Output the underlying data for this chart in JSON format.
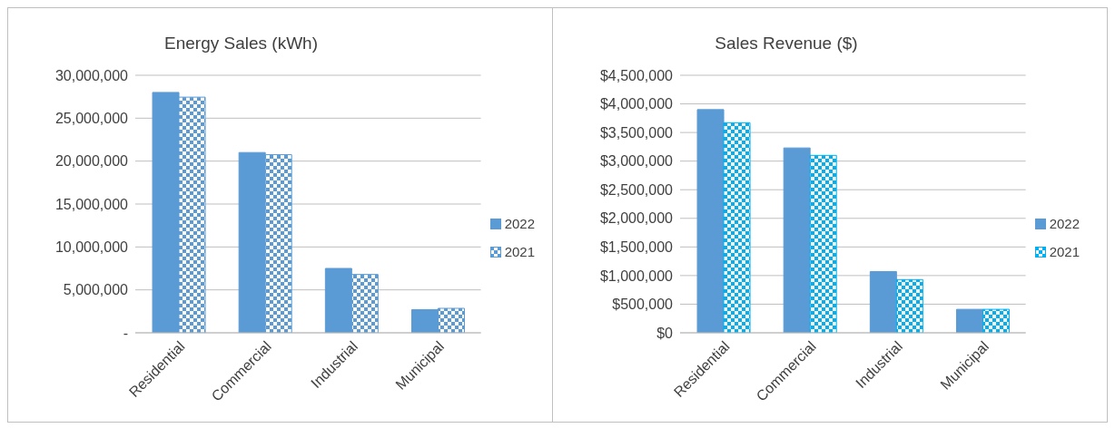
{
  "chart_data": [
    {
      "type": "bar",
      "title": "Energy Sales (kWh)",
      "categories": [
        "Residential",
        "Commercial",
        "Industrial",
        "Municipal"
      ],
      "series": [
        {
          "name": "2022",
          "color": "#5b9bd5",
          "values": [
            28000000,
            21000000,
            7500000,
            2700000
          ]
        },
        {
          "name": "2021",
          "color": "#5b9bd5",
          "values": [
            27450000,
            20750000,
            6800000,
            2850000
          ]
        }
      ],
      "ylim": [
        0,
        30000000
      ],
      "yticks": [
        {
          "value": 0,
          "label": "-"
        },
        {
          "value": 5000000,
          "label": "5,000,000"
        },
        {
          "value": 10000000,
          "label": "10,000,000"
        },
        {
          "value": 15000000,
          "label": "15,000,000"
        },
        {
          "value": 20000000,
          "label": "20,000,000"
        },
        {
          "value": 25000000,
          "label": "25,000,000"
        },
        {
          "value": 30000000,
          "label": "30,000,000"
        }
      ],
      "grid": "y",
      "legend": "right"
    },
    {
      "type": "bar",
      "title": "Sales Revenue ($)",
      "categories": [
        "Residential",
        "Commercial",
        "Industrial",
        "Municipal"
      ],
      "series": [
        {
          "name": "2022",
          "color": "#5b9bd5",
          "values": [
            3900000,
            3230000,
            1070000,
            410000
          ]
        },
        {
          "name": "2021",
          "color": "#00b0f0",
          "values": [
            3670000,
            3100000,
            930000,
            410000
          ]
        }
      ],
      "ylim": [
        0,
        4500000
      ],
      "yticks": [
        {
          "value": 0,
          "label": "$0"
        },
        {
          "value": 500000,
          "label": "$500,000"
        },
        {
          "value": 1000000,
          "label": "$1,000,000"
        },
        {
          "value": 1500000,
          "label": "$1,500,000"
        },
        {
          "value": 2000000,
          "label": "$2,000,000"
        },
        {
          "value": 2500000,
          "label": "$2,500,000"
        },
        {
          "value": 3000000,
          "label": "$3,000,000"
        },
        {
          "value": 3500000,
          "label": "$3,500,000"
        },
        {
          "value": 4000000,
          "label": "$4,000,000"
        },
        {
          "value": 4500000,
          "label": "$4,500,000"
        }
      ],
      "grid": "y",
      "legend": "right"
    }
  ]
}
